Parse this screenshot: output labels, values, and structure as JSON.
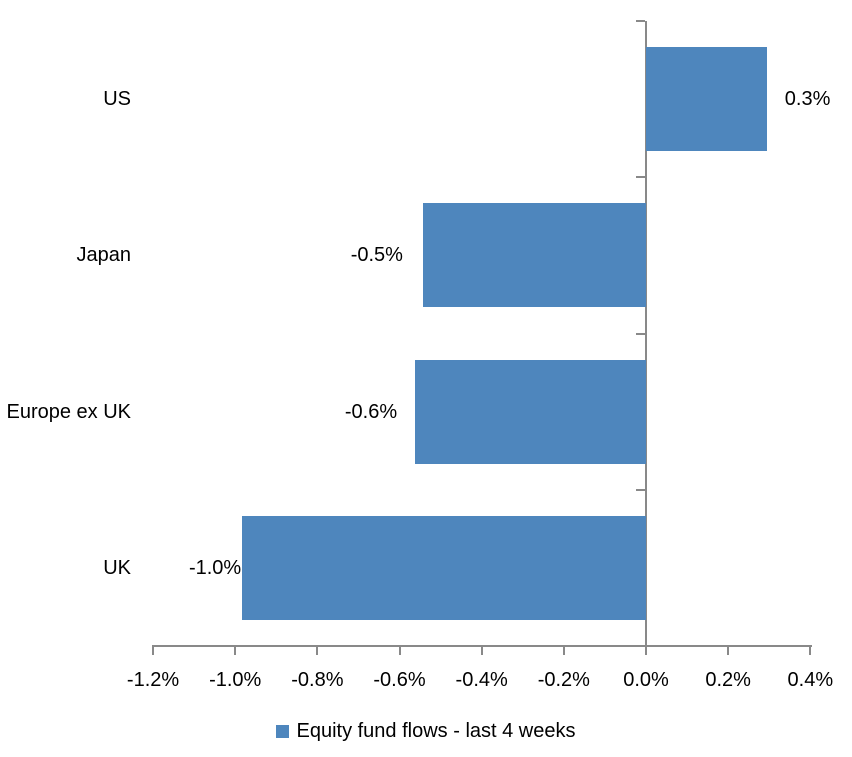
{
  "chart_data": {
    "type": "bar",
    "orientation": "horizontal",
    "title": "",
    "xlabel": "",
    "ylabel": "",
    "categories": [
      "US",
      "Japan",
      "Europe ex UK",
      "UK"
    ],
    "series": [
      {
        "name": "Equity fund flows - last 4 weeks",
        "values": [
          0.3,
          -0.5,
          -0.6,
          -1.0
        ],
        "values_precise": [
          0.294,
          -0.543,
          -0.562,
          -0.983
        ],
        "data_labels": [
          "0.3%",
          "-0.5%",
          "-0.6%",
          "-1.0%"
        ]
      }
    ],
    "xlim": [
      -1.2,
      0.4
    ],
    "x_ticks": [
      -1.2,
      -1.0,
      -0.8,
      -0.6,
      -0.4,
      -0.2,
      0.0,
      0.2,
      0.4
    ],
    "x_tick_labels": [
      "-1.2%",
      "-1.0%",
      "-0.8%",
      "-0.6%",
      "-0.4%",
      "-0.2%",
      "0.0%",
      "0.2%",
      "0.4%"
    ],
    "grid": "off",
    "legend_position": "bottom",
    "legend_label": "Equity fund flows - last 4 weeks",
    "colors": {
      "bar": "#4E86BD",
      "axis": "#898989",
      "text": "#000000",
      "background": "#FFFFFF"
    }
  }
}
